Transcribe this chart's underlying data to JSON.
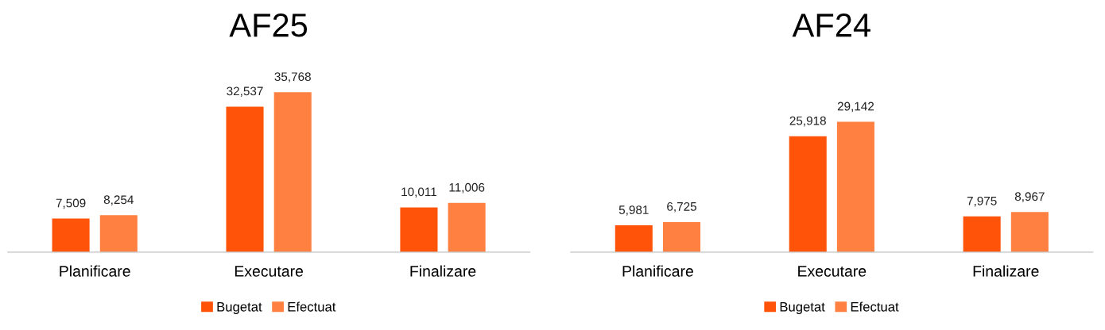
{
  "chart_data": [
    {
      "type": "bar",
      "title": "AF25",
      "categories": [
        "Planificare",
        "Executare",
        "Finalizare"
      ],
      "series": [
        {
          "name": "Bugetat",
          "color": "#ff5309",
          "values": [
            7509,
            32537,
            10011
          ],
          "value_labels": [
            "7,509",
            "32,537",
            "10,011"
          ]
        },
        {
          "name": "Efectuat",
          "color": "#ff8040",
          "values": [
            8254,
            35768,
            11006
          ],
          "value_labels": [
            "8,254",
            "35,768",
            "11,006"
          ]
        }
      ],
      "legend": "bottom",
      "tick_labels": "x"
    },
    {
      "type": "bar",
      "title": "AF24",
      "categories": [
        "Planificare",
        "Executare",
        "Finalizare"
      ],
      "series": [
        {
          "name": "Bugetat",
          "color": "#ff5309",
          "values": [
            5981,
            25918,
            7975
          ],
          "value_labels": [
            "5,981",
            "25,918",
            "7,975"
          ]
        },
        {
          "name": "Efectuat",
          "color": "#ff8040",
          "values": [
            6725,
            29142,
            8967
          ],
          "value_labels": [
            "6,725",
            "29,142",
            "8,967"
          ]
        }
      ],
      "legend": "bottom",
      "tick_labels": "x"
    }
  ]
}
